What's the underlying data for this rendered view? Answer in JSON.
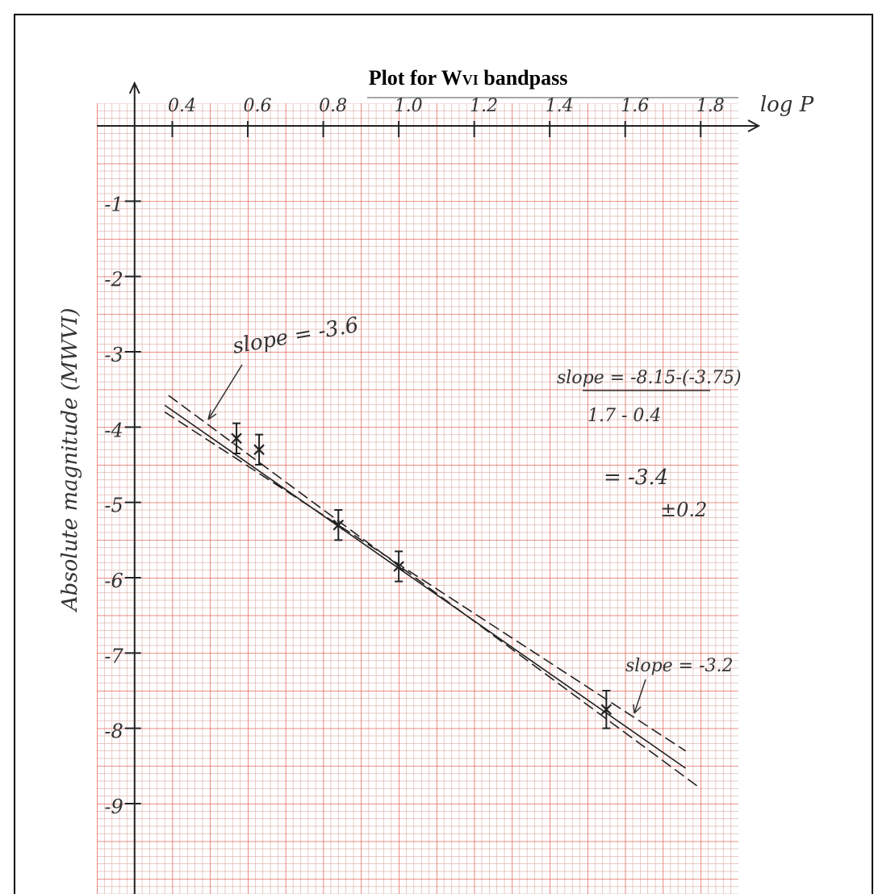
{
  "chart_data": {
    "type": "scatter",
    "title": "Plot for W",
    "title_subscript": "VI",
    "title_suffix": " bandpass",
    "x_label": "log P",
    "y_label": "Absolute magnitude (MWVI)",
    "xlim": [
      0.2,
      1.9
    ],
    "ylim": [
      -10.2,
      0.3
    ],
    "xticks": [
      0.4,
      0.6,
      0.8,
      {
        "value": 1,
        "label": "1.0"
      },
      1.2,
      1.4,
      1.6,
      1.8
    ],
    "yticks": [
      -1,
      -2,
      -3,
      -4,
      -5,
      -6,
      -7,
      -8,
      -9
    ],
    "grid": true,
    "grid_color": "#e0493b",
    "series": [
      {
        "color": "#222222",
        "x": [
          0.57,
          0.63,
          0.84,
          1.0,
          1.55
        ],
        "values": [
          -4.15,
          -4.3,
          -5.3,
          -5.85,
          -7.75
        ],
        "errors": [
          0.2,
          0.2,
          0.2,
          0.2,
          0.25
        ]
      }
    ],
    "lines": [
      {
        "style": "solid",
        "x": [
          0.38,
          1.76
        ],
        "values": [
          -3.71,
          -8.53
        ]
      },
      {
        "style": "dashed",
        "x": [
          0.39,
          1.8
        ],
        "values": [
          -3.58,
          -8.8
        ]
      },
      {
        "style": "dashed",
        "x": [
          0.38,
          1.76
        ],
        "values": [
          -3.8,
          -8.3
        ]
      }
    ],
    "annotations": [
      "slope = -3.6",
      "slope = -8.15-(-3.75)",
      "1.7 - 0.4",
      "= -3.4",
      "±0.2",
      "slope = -3.2"
    ]
  }
}
